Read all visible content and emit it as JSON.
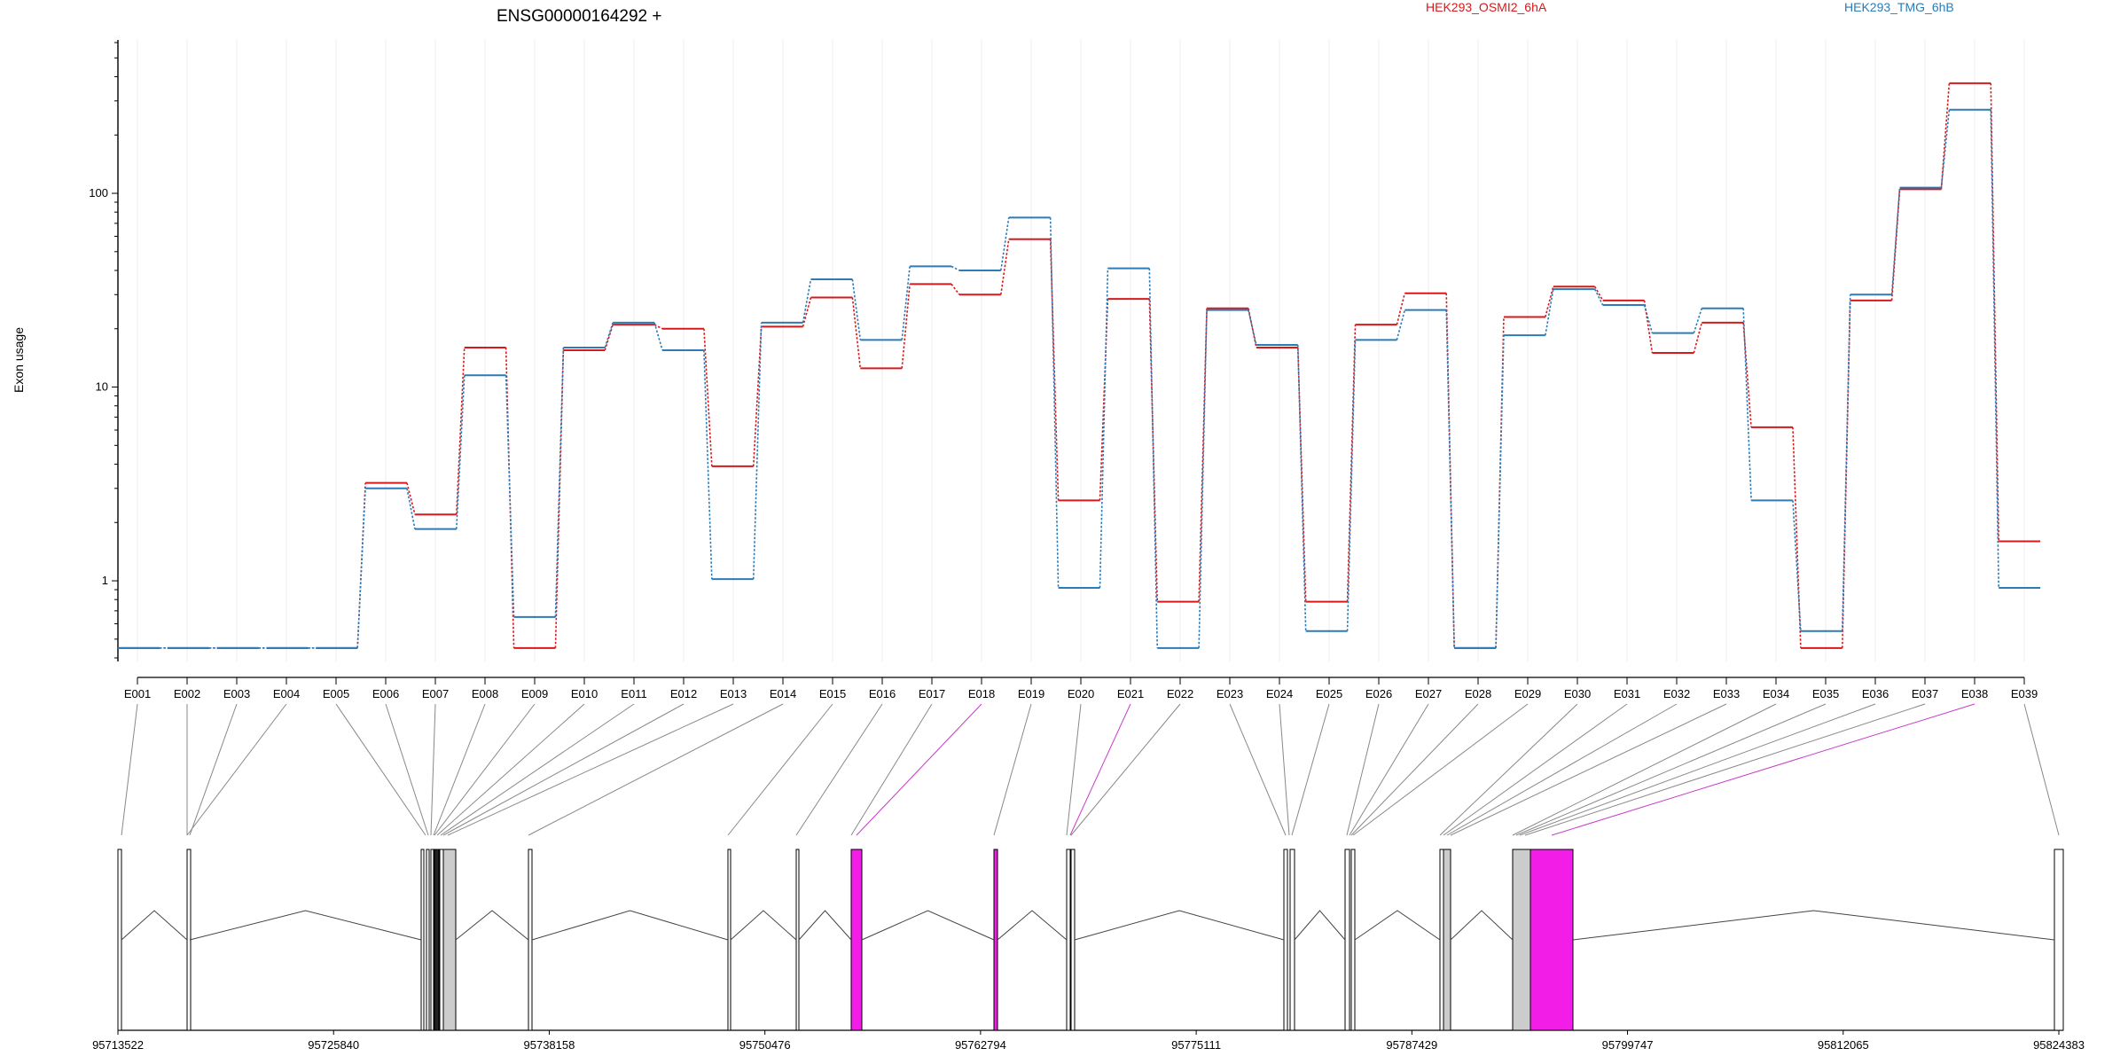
{
  "chart_data": {
    "type": "line",
    "title": "ENSG00000164292 +",
    "ylabel": "Exon usage",
    "y_scale": "log",
    "ylim": [
      0.4,
      600
    ],
    "y_ticks": [
      1,
      10,
      100
    ],
    "y_tick_labels": [
      "1",
      "10",
      "100"
    ],
    "categories": [
      "E001",
      "E002",
      "E003",
      "E004",
      "E005",
      "E006",
      "E007",
      "E008",
      "E009",
      "E010",
      "E011",
      "E012",
      "E013",
      "E014",
      "E015",
      "E016",
      "E017",
      "E018",
      "E019",
      "E020",
      "E021",
      "E022",
      "E023",
      "E024",
      "E025",
      "E026",
      "E027",
      "E028",
      "E029",
      "E030",
      "E031",
      "E032",
      "E033",
      "E034",
      "E035",
      "E036",
      "E037",
      "E038",
      "E039"
    ],
    "legend_position": "top",
    "series": [
      {
        "name": "HEK293_OSMI2_6hA",
        "color": "#d7191c",
        "values": [
          0.45,
          0.45,
          0.45,
          0.45,
          0.45,
          3.2,
          2.2,
          16,
          0.45,
          15.5,
          21,
          20,
          3.9,
          20.5,
          29,
          12.5,
          34,
          30,
          58,
          2.6,
          28.5,
          0.78,
          25.5,
          16,
          0.78,
          21,
          30.5,
          0.45,
          23,
          33,
          28,
          15,
          21.5,
          6.2,
          0.45,
          28,
          105,
          370,
          1.6
        ]
      },
      {
        "name": "HEK293_TMG_6hB",
        "color": "#2c7bb6",
        "values": [
          0.45,
          0.45,
          0.45,
          0.45,
          0.45,
          3.0,
          1.85,
          11.5,
          0.65,
          16,
          21.5,
          15.5,
          1.02,
          21.5,
          36,
          17.5,
          42,
          40,
          75,
          0.92,
          41,
          0.45,
          25,
          16.5,
          0.55,
          17.5,
          25,
          0.45,
          18.5,
          32,
          26.5,
          19,
          25.5,
          2.6,
          0.55,
          30,
          107,
          270,
          0.92
        ]
      }
    ],
    "gene_model": {
      "coordinate_labels": [
        "95713522",
        "95725840",
        "95738158",
        "95750476",
        "95762794",
        "95775111",
        "95787429",
        "95799747",
        "95812065",
        "95824383"
      ]
    }
  }
}
